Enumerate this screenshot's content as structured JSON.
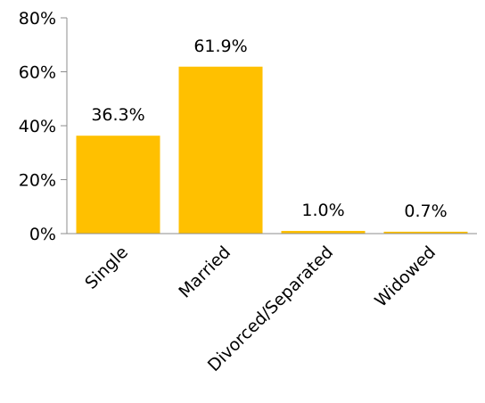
{
  "chart_data": {
    "type": "bar",
    "categories": [
      "Single",
      "Married",
      "Divorced/Separated",
      "Widowed"
    ],
    "values": [
      36.3,
      61.9,
      1.0,
      0.7
    ],
    "data_labels": [
      "36.3%",
      "61.9%",
      "1.0%",
      "0.7%"
    ],
    "y_ticks": [
      0,
      20,
      40,
      60,
      80
    ],
    "y_tick_labels": [
      "0%",
      "20%",
      "40%",
      "60%",
      "80%"
    ],
    "ylim": [
      0,
      80
    ],
    "grid": false,
    "legend": "none",
    "bar_color": "#FFC000",
    "axis_color": "#8C8C8C"
  }
}
